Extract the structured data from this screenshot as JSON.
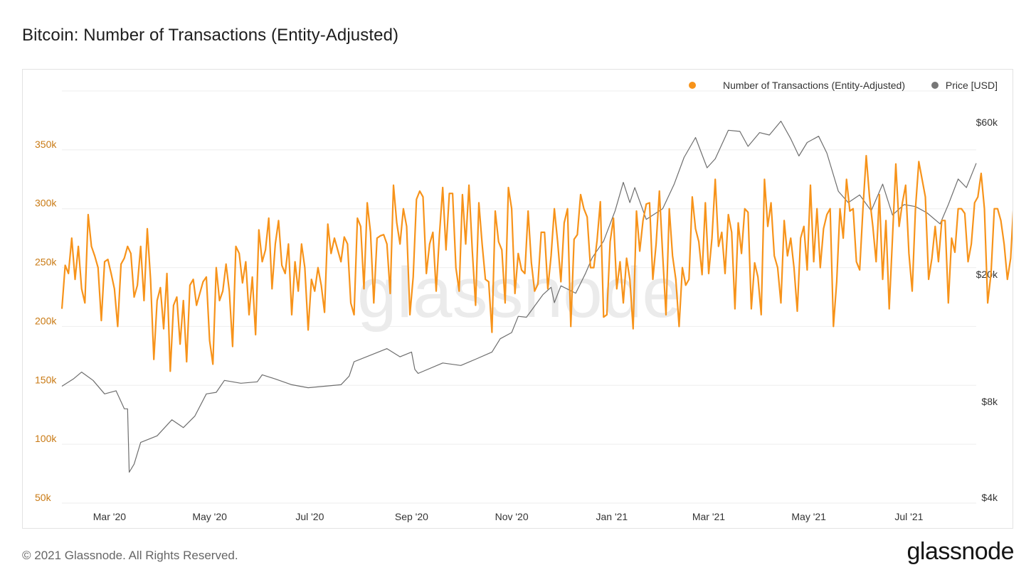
{
  "header": {
    "title": "Bitcoin: Number of Transactions (Entity-Adjusted)"
  },
  "footer": {
    "copyright": "© 2021 Glassnode. All Rights Reserved.",
    "brand": "glassnode"
  },
  "watermark": "glassnode",
  "colors": {
    "transactions": "#f7931a",
    "price": "#6e6e6e",
    "axis_left_text": "#c97a14",
    "axis_right_text": "#333333",
    "grid": "#eeeeee"
  },
  "chart_data": {
    "type": "line",
    "title": "Bitcoin: Number of Transactions (Entity-Adjusted)",
    "legend": [
      {
        "name": "Number of Transactions (Entity-Adjusted)",
        "color": "#f7931a",
        "marker": "circle"
      },
      {
        "name": "Price [USD]",
        "color": "#777777",
        "marker": "circle"
      }
    ],
    "legend_position": "top-right",
    "grid": true,
    "x_range": [
      "2020-02-01",
      "2021-08-11"
    ],
    "x_ticks": [
      {
        "date": "2020-03-01",
        "label": "Mar '20"
      },
      {
        "date": "2020-05-01",
        "label": "May '20"
      },
      {
        "date": "2020-07-01",
        "label": "Jul '20"
      },
      {
        "date": "2020-09-01",
        "label": "Sep '20"
      },
      {
        "date": "2020-11-01",
        "label": "Nov '20"
      },
      {
        "date": "2021-01-01",
        "label": "Jan '21"
      },
      {
        "date": "2021-03-01",
        "label": "Mar '21"
      },
      {
        "date": "2021-05-01",
        "label": "May '21"
      },
      {
        "date": "2021-07-01",
        "label": "Jul '21"
      }
    ],
    "y_left": {
      "label": "Number of Transactions (Entity-Adjusted)",
      "range": [
        50000,
        400000
      ],
      "ticks": [
        {
          "value": 50000,
          "label": "50k"
        },
        {
          "value": 100000,
          "label": "100k"
        },
        {
          "value": 150000,
          "label": "150k"
        },
        {
          "value": 200000,
          "label": "200k"
        },
        {
          "value": 250000,
          "label": "250k"
        },
        {
          "value": 300000,
          "label": "300k"
        },
        {
          "value": 350000,
          "label": "350k"
        }
      ]
    },
    "y_right": {
      "label": "Price [USD]",
      "scale": "log",
      "range": [
        4000,
        60000
      ],
      "ticks": [
        {
          "value": 4000,
          "label": "$4k"
        },
        {
          "value": 8000,
          "label": "$8k"
        },
        {
          "value": 20000,
          "label": "$20k"
        },
        {
          "value": 60000,
          "label": "$60k"
        }
      ]
    },
    "series": [
      {
        "name": "Number of Transactions (Entity-Adjusted)",
        "axis": "left",
        "step_days": 2,
        "x_start": "2020-02-01",
        "values": [
          215000,
          252000,
          245000,
          275000,
          240000,
          268000,
          232000,
          220000,
          295000,
          268000,
          260000,
          250000,
          205000,
          255000,
          257000,
          245000,
          232000,
          200000,
          253000,
          258000,
          268000,
          262000,
          225000,
          235000,
          268000,
          222000,
          283000,
          240000,
          172000,
          222000,
          233000,
          198000,
          245000,
          162000,
          218000,
          225000,
          185000,
          222000,
          170000,
          235000,
          240000,
          218000,
          228000,
          238000,
          242000,
          188000,
          168000,
          250000,
          222000,
          230000,
          253000,
          230000,
          183000,
          268000,
          262000,
          237000,
          255000,
          210000,
          242000,
          193000,
          282000,
          255000,
          265000,
          292000,
          232000,
          270000,
          290000,
          252000,
          245000,
          270000,
          210000,
          255000,
          230000,
          270000,
          250000,
          197000,
          240000,
          230000,
          250000,
          235000,
          212000,
          287000,
          262000,
          275000,
          265000,
          255000,
          276000,
          270000,
          220000,
          210000,
          292000,
          285000,
          232000,
          305000,
          280000,
          220000,
          275000,
          277000,
          278000,
          270000,
          228000,
          320000,
          288000,
          270000,
          300000,
          285000,
          210000,
          242000,
          308000,
          315000,
          310000,
          245000,
          270000,
          280000,
          230000,
          278000,
          318000,
          265000,
          313000,
          313000,
          250000,
          230000,
          312000,
          270000,
          320000,
          264000,
          218000,
          305000,
          270000,
          240000,
          238000,
          195000,
          298000,
          272000,
          265000,
          220000,
          318000,
          300000,
          228000,
          262000,
          248000,
          245000,
          298000,
          254000,
          230000,
          236000,
          280000,
          280000,
          232000,
          260000,
          300000,
          272000,
          238000,
          288000,
          300000,
          200000,
          274000,
          278000,
          312000,
          300000,
          293000,
          250000,
          250000,
          273000,
          306000,
          208000,
          210000,
          272000,
          292000,
          232000,
          255000,
          220000,
          258000,
          240000,
          198000,
          298000,
          264000,
          290000,
          304000,
          305000,
          240000,
          270000,
          315000,
          260000,
          210000,
          300000,
          260000,
          240000,
          200000,
          250000,
          235000,
          240000,
          310000,
          283000,
          272000,
          244000,
          305000,
          245000,
          275000,
          325000,
          268000,
          280000,
          245000,
          295000,
          280000,
          215000,
          288000,
          262000,
          300000,
          297000,
          215000,
          254000,
          242000,
          210000,
          325000,
          285000,
          305000,
          260000,
          250000,
          220000,
          290000,
          260000,
          275000,
          250000,
          213000,
          275000,
          285000,
          248000,
          320000,
          255000,
          300000,
          250000,
          283000,
          295000,
          300000,
          200000,
          238000,
          300000,
          275000,
          325000,
          298000,
          300000,
          255000,
          248000,
          300000,
          345000,
          310000,
          285000,
          255000,
          312000,
          240000,
          290000,
          215000,
          275000,
          338000,
          285000,
          305000,
          320000,
          262000,
          230000,
          300000,
          340000,
          325000,
          310000,
          240000,
          258000,
          285000,
          255000,
          290000,
          290000,
          220000,
          275000,
          263000,
          300000,
          300000,
          296000,
          255000,
          270000,
          305000,
          310000,
          330000,
          300000,
          220000,
          245000,
          300000,
          300000,
          290000,
          270000,
          240000,
          258000,
          310000,
          275000,
          320000,
          290000,
          265000,
          275000,
          280000,
          310000,
          300000,
          260000,
          265000,
          250000,
          290000,
          305000,
          300000,
          282000,
          290000,
          248000,
          250000,
          295000,
          242000,
          310000,
          305000,
          315000,
          260000,
          265000,
          285000,
          250000,
          240000,
          300000,
          320000,
          300000,
          288000,
          270000,
          255000,
          272000,
          230000,
          215000,
          265000,
          290000,
          255000,
          240000,
          270000,
          275000,
          260000,
          255000,
          218000,
          237000,
          310000,
          284000,
          250000,
          265000,
          270000,
          275000,
          255000,
          240000,
          262000,
          300000,
          270000,
          238000,
          245000,
          300000,
          200000,
          255000,
          265000,
          280000,
          240000,
          243000,
          225000,
          275000,
          245000,
          244000,
          262000,
          210000,
          250000,
          215000,
          255000,
          245000,
          253000,
          205000,
          260000,
          287000,
          262000,
          215000,
          240000,
          245000,
          263000,
          192000,
          185000,
          255000,
          245000,
          222000,
          252000,
          210000,
          205000,
          200000,
          255000,
          262000,
          230000,
          216000,
          230000,
          250000,
          245000,
          243000,
          243000,
          180000,
          168000,
          240000,
          232000,
          195000,
          205000,
          195000,
          190000,
          168000,
          210000,
          180000,
          165000,
          195000,
          208000,
          185000,
          173000,
          197000,
          200000,
          193000,
          168000,
          218000,
          188000,
          160000,
          215000,
          180000,
          178000,
          190000,
          150000,
          205000,
          198000,
          210000,
          220000,
          205000,
          180000,
          190000,
          178000,
          190000,
          170000,
          160000,
          195000,
          198000,
          198000,
          175000,
          150000,
          185000,
          180000,
          160000,
          210000,
          198000,
          200000,
          195000,
          180000,
          148000,
          215000,
          200000,
          190000,
          210000,
          205000,
          198000,
          215000,
          185000,
          190000,
          220000,
          205000,
          208000
        ]
      },
      {
        "name": "Price [USD]",
        "axis": "right",
        "x": [
          "2020-02-01",
          "2020-02-08",
          "2020-02-13",
          "2020-02-20",
          "2020-02-27",
          "2020-03-05",
          "2020-03-10",
          "2020-03-12",
          "2020-03-13",
          "2020-03-16",
          "2020-03-20",
          "2020-03-30",
          "2020-04-08",
          "2020-04-15",
          "2020-04-22",
          "2020-04-29",
          "2020-05-05",
          "2020-05-10",
          "2020-05-20",
          "2020-05-30",
          "2020-06-02",
          "2020-06-10",
          "2020-06-20",
          "2020-06-30",
          "2020-07-10",
          "2020-07-20",
          "2020-07-25",
          "2020-07-28",
          "2020-08-10",
          "2020-08-17",
          "2020-08-25",
          "2020-09-01",
          "2020-09-03",
          "2020-09-05",
          "2020-09-20",
          "2020-10-01",
          "2020-10-10",
          "2020-10-20",
          "2020-10-25",
          "2020-11-01",
          "2020-11-05",
          "2020-11-10",
          "2020-11-20",
          "2020-11-25",
          "2020-11-27",
          "2020-12-01",
          "2020-12-10",
          "2020-12-16",
          "2020-12-20",
          "2020-12-27",
          "2021-01-03",
          "2021-01-08",
          "2021-01-12",
          "2021-01-15",
          "2021-01-22",
          "2021-02-01",
          "2021-02-08",
          "2021-02-14",
          "2021-02-21",
          "2021-02-28",
          "2021-03-05",
          "2021-03-13",
          "2021-03-20",
          "2021-03-25",
          "2021-04-01",
          "2021-04-07",
          "2021-04-14",
          "2021-04-20",
          "2021-04-25",
          "2021-04-30",
          "2021-05-07",
          "2021-05-12",
          "2021-05-19",
          "2021-05-25",
          "2021-06-01",
          "2021-06-08",
          "2021-06-15",
          "2021-06-21",
          "2021-06-28",
          "2021-07-05",
          "2021-07-12",
          "2021-07-20",
          "2021-07-25",
          "2021-07-31",
          "2021-08-05",
          "2021-08-11"
        ],
        "values": [
          9300,
          9800,
          10300,
          9700,
          8800,
          9000,
          7900,
          7900,
          5000,
          5300,
          6200,
          6500,
          7300,
          6900,
          7500,
          8800,
          8900,
          9700,
          9500,
          9600,
          10100,
          9800,
          9400,
          9200,
          9300,
          9400,
          10000,
          11100,
          11800,
          12200,
          11500,
          11900,
          10500,
          10200,
          11000,
          10800,
          11300,
          11900,
          13100,
          13700,
          15400,
          15300,
          18000,
          19000,
          17000,
          19200,
          18200,
          21000,
          23500,
          26500,
          33000,
          40500,
          35000,
          39000,
          31000,
          33500,
          40000,
          48500,
          56000,
          45000,
          48000,
          59000,
          58500,
          52500,
          58000,
          57000,
          63000,
          55500,
          49000,
          54000,
          56500,
          50000,
          38000,
          35000,
          37000,
          33000,
          40000,
          32000,
          34500,
          34000,
          32500,
          30000,
          34500,
          41500,
          39000,
          46500
        ]
      }
    ]
  }
}
